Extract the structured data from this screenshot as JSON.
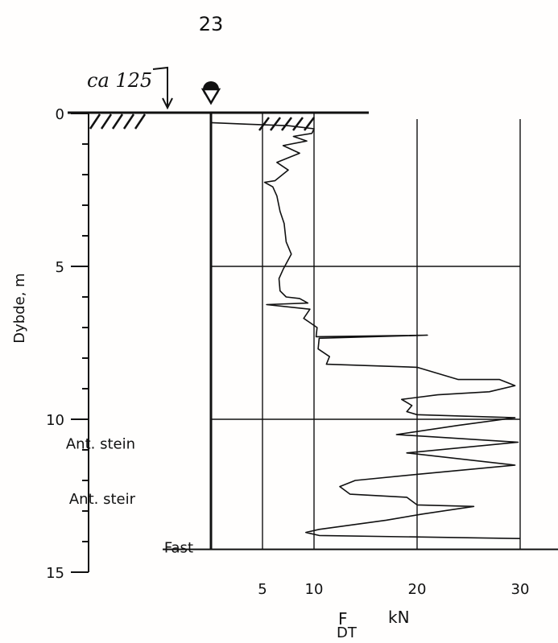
{
  "page": {
    "number": "23"
  },
  "annotation": {
    "elevation": "ca 125"
  },
  "chart_data": {
    "type": "line",
    "title": "",
    "xlabel_main": "F",
    "xlabel_sub": "DT",
    "xlabel_unit": "kN",
    "ylabel": "Dybde, m",
    "xlim": [
      0,
      30
    ],
    "ylim": [
      0,
      15
    ],
    "x_ticks": [
      "5",
      "10",
      "20",
      "30"
    ],
    "y_ticks": [
      "0",
      "5",
      "10",
      "15"
    ],
    "depth_labels": [
      {
        "text": "Ant. stein",
        "depth": 10.8
      },
      {
        "text": "Ant. steir",
        "depth": 12.6
      },
      {
        "text": "Fast",
        "depth": 14.2
      }
    ],
    "stop_depth": 14.2,
    "series": [
      {
        "points": [
          [
            0,
            0.3
          ],
          [
            3.5,
            0.35
          ],
          [
            7.5,
            0.4
          ],
          [
            10,
            0.5
          ],
          [
            9.8,
            0.65
          ],
          [
            8,
            0.75
          ],
          [
            9.3,
            0.9
          ],
          [
            7,
            1.05
          ],
          [
            8.6,
            1.3
          ],
          [
            6.4,
            1.6
          ],
          [
            7.5,
            1.85
          ],
          [
            6.2,
            2.2
          ],
          [
            5.2,
            2.25
          ],
          [
            6,
            2.4
          ],
          [
            6.4,
            2.7
          ],
          [
            6.7,
            3.2
          ],
          [
            7.1,
            3.6
          ],
          [
            7.3,
            4.2
          ],
          [
            7.8,
            4.6
          ],
          [
            7.0,
            5.1
          ],
          [
            6.6,
            5.4
          ],
          [
            6.7,
            5.8
          ],
          [
            7.3,
            6.0
          ],
          [
            8.6,
            6.05
          ],
          [
            9.4,
            6.2
          ],
          [
            5.4,
            6.25
          ],
          [
            9.6,
            6.4
          ],
          [
            9.0,
            6.7
          ],
          [
            10.3,
            7.0
          ],
          [
            10.2,
            7.3
          ],
          [
            21,
            7.25
          ],
          [
            10.5,
            7.35
          ],
          [
            10.4,
            7.7
          ],
          [
            11.5,
            7.95
          ],
          [
            11.2,
            8.2
          ],
          [
            20,
            8.3
          ],
          [
            24,
            8.7
          ],
          [
            28,
            8.7
          ],
          [
            29.5,
            8.9
          ],
          [
            27,
            9.1
          ],
          [
            22,
            9.2
          ],
          [
            18.5,
            9.35
          ],
          [
            19.5,
            9.55
          ],
          [
            19,
            9.75
          ],
          [
            20,
            9.85
          ],
          [
            29.5,
            9.95
          ],
          [
            24,
            10.2
          ],
          [
            18,
            10.5
          ],
          [
            29.8,
            10.75
          ],
          [
            19,
            11.1
          ],
          [
            29.5,
            11.5
          ],
          [
            20,
            11.8
          ],
          [
            14,
            12.0
          ],
          [
            12.5,
            12.2
          ],
          [
            13.5,
            12.45
          ],
          [
            19,
            12.55
          ],
          [
            20,
            12.8
          ],
          [
            25.5,
            12.85
          ],
          [
            20.5,
            13.1
          ],
          [
            17,
            13.3
          ],
          [
            10.5,
            13.6
          ],
          [
            9.2,
            13.7
          ],
          [
            10.5,
            13.8
          ],
          [
            30,
            13.9
          ]
        ]
      }
    ]
  }
}
